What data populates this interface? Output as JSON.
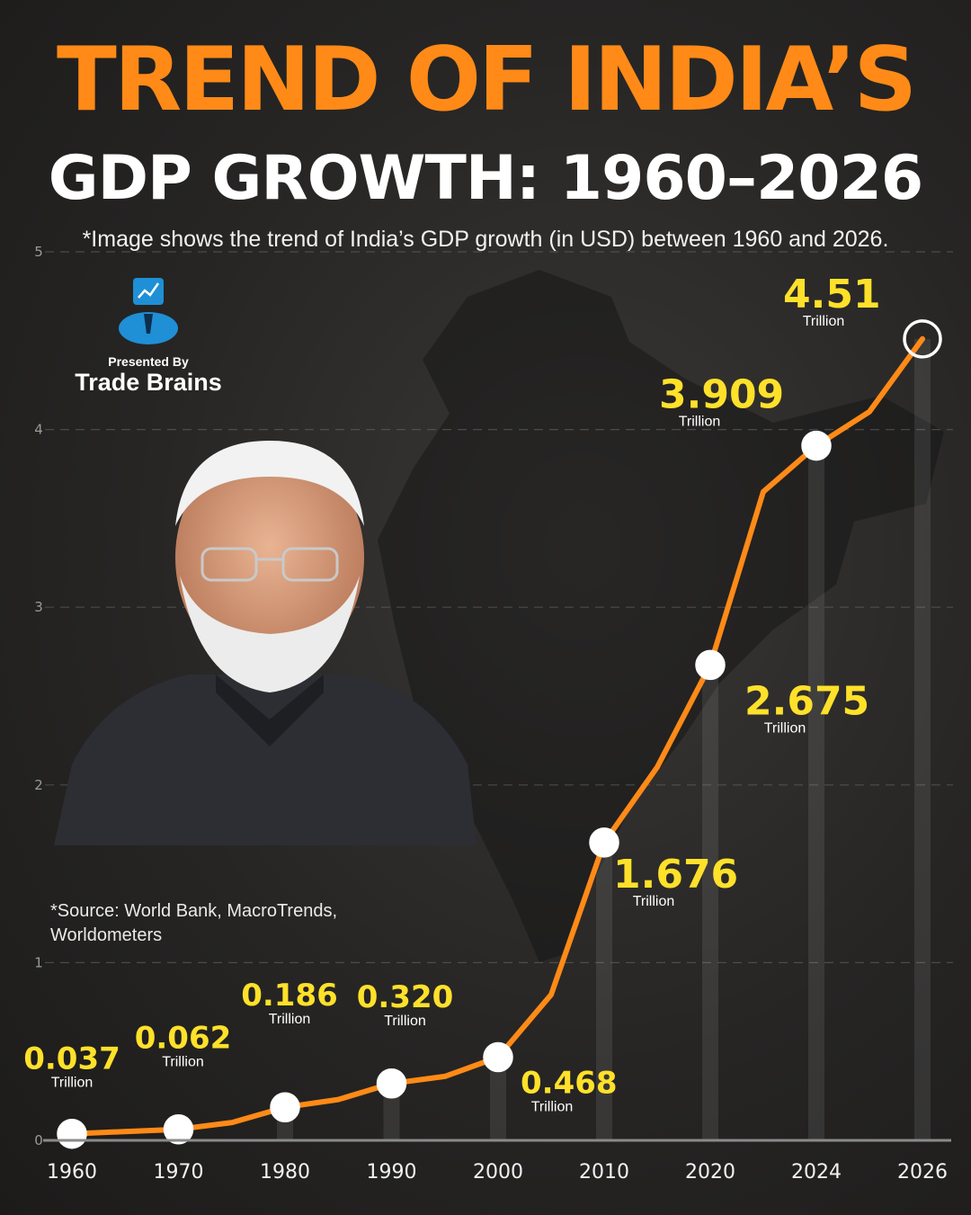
{
  "header": {
    "title_line1": "TREND OF INDIA’S",
    "title_line2": "GDP GROWTH: 1960–2026",
    "subtitle": "*Image shows the trend of India’s GDP growth (in USD) between 1960 and 2026."
  },
  "brand": {
    "presented_by": "Presented By",
    "name": "Trade Brains"
  },
  "source": "*Source: World Bank, MacroTrends,\n Worldometers",
  "colors": {
    "accent_orange": "#ff8a17",
    "label_yellow": "#ffe12a",
    "background": "#262524"
  },
  "chart_data": {
    "type": "line",
    "title": "TREND OF INDIA’S GDP GROWTH: 1960–2026",
    "xlabel": "",
    "ylabel": "",
    "ylim": [
      0,
      5
    ],
    "y_ticks": [
      "0",
      "1",
      "2",
      "3",
      "4",
      "5"
    ],
    "x_ticks": [
      "1960",
      "1970",
      "1980",
      "1990",
      "2000",
      "2010",
      "2020",
      "2024",
      "2026"
    ],
    "grid": true,
    "series": [
      {
        "x": [
          "1960",
          "1970",
          "1975",
          "1980",
          "1985",
          "1990",
          "1995",
          "2000",
          "2005",
          "2010",
          "2015",
          "2020",
          "2022",
          "2024",
          "2025",
          "2026"
        ],
        "values": [
          0.037,
          0.062,
          0.1,
          0.186,
          0.23,
          0.32,
          0.36,
          0.468,
          0.82,
          1.676,
          2.1,
          2.675,
          3.65,
          3.909,
          4.1,
          4.51
        ]
      }
    ],
    "annotations": [
      {
        "x": "1960",
        "value": "0.037",
        "unit": "Trillion"
      },
      {
        "x": "1970",
        "value": "0.062",
        "unit": "Trillion"
      },
      {
        "x": "1980",
        "value": "0.186",
        "unit": "Trillion"
      },
      {
        "x": "1990",
        "value": "0.320",
        "unit": "Trillion"
      },
      {
        "x": "2000",
        "value": "0.468",
        "unit": "Trillion"
      },
      {
        "x": "2010",
        "value": "1.676",
        "unit": "Trillion"
      },
      {
        "x": "2020",
        "value": "2.675",
        "unit": "Trillion"
      },
      {
        "x": "2024",
        "value": "3.909",
        "unit": "Trillion"
      },
      {
        "x": "2026",
        "value": "4.51",
        "unit": "Trillion"
      }
    ]
  }
}
